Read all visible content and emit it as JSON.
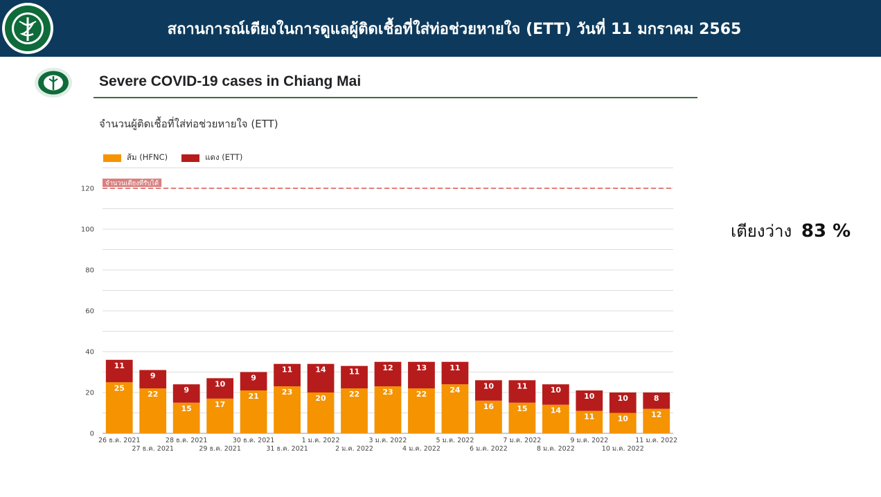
{
  "banner": {
    "title": "สถานการณ์เตียงในการดูแลผู้ติดเชื้อที่ใส่ท่อช่วยหายใจ (ETT) วันที่ 11 มกราคม 2565",
    "logo": "ministry-of-public-health-seal"
  },
  "side_note": {
    "label": "เตียงว่าง",
    "value": "83 %"
  },
  "colors": {
    "banner": "#0d3a5c",
    "hfnc": "#f59300",
    "ett": "#b71c1c",
    "capacity": "#d9534f"
  },
  "chart_data": {
    "type": "bar",
    "stacked": true,
    "title": "Severe COVID-19 cases in Chiang Mai",
    "subtitle": "จำนวนผู้ติดเชื้อที่ใส่ท่อช่วยหายใจ (ETT)",
    "legend_position": "top-left",
    "categories": [
      "26 ธ.ค. 2021",
      "27 ธ.ค. 2021",
      "28 ธ.ค. 2021",
      "29 ธ.ค. 2021",
      "30 ธ.ค. 2021",
      "31 ธ.ค. 2021",
      "1 ม.ค. 2022",
      "2 ม.ค. 2022",
      "3 ม.ค. 2022",
      "4 ม.ค. 2022",
      "5 ม.ค. 2022",
      "6 ม.ค. 2022",
      "7 ม.ค. 2022",
      "8 ม.ค. 2022",
      "9 ม.ค. 2022",
      "10 ม.ค. 2022",
      "11 ม.ค. 2022"
    ],
    "series": [
      {
        "name": "ส้ม (HFNC)",
        "values": [
          25,
          22,
          15,
          17,
          21,
          23,
          20,
          22,
          23,
          22,
          24,
          16,
          15,
          14,
          11,
          10,
          12
        ]
      },
      {
        "name": "แดง (ETT)",
        "values": [
          11,
          9,
          9,
          10,
          9,
          11,
          14,
          11,
          12,
          13,
          11,
          10,
          11,
          10,
          10,
          10,
          8
        ]
      }
    ],
    "yticks": [
      0,
      20,
      40,
      60,
      80,
      100,
      120
    ],
    "ylim": [
      0,
      130
    ],
    "grid": true,
    "capacity_line": {
      "value": 120,
      "label": "จำนวนเตียงที่รับได้"
    }
  }
}
